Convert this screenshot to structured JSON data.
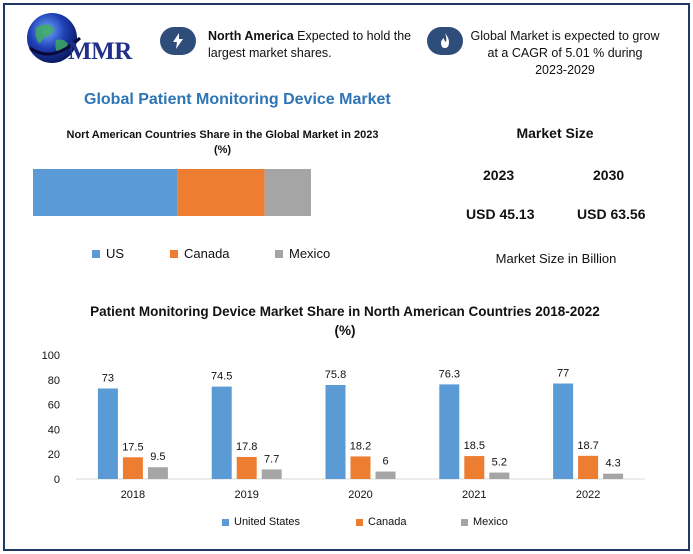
{
  "brand": {
    "logo_text": "MMR"
  },
  "colors": {
    "us": "#5b9bd5",
    "canada": "#ed7d31",
    "mexico": "#a5a5a5",
    "title_blue": "#2e75b6",
    "icon_bg": "#2f4d7a"
  },
  "info": {
    "left_icon": "lightning-bolt-icon",
    "left_bold": "North America",
    "left_text": " Expected to hold the largest market shares.",
    "right_icon": "flame-icon",
    "right_text": "Global Market is expected to grow at a CAGR of 5.01 % during 2023-2029"
  },
  "main_title": "Global Patient Monitoring Device Market",
  "share_chart": {
    "title": "Nort American Countries Share in the Global Market in 2023 (%)",
    "legend": [
      "US",
      "Canada",
      "Mexico"
    ]
  },
  "market_size": {
    "title": "Market Size",
    "year_a": "2023",
    "year_b": "2030",
    "value_a": "USD 45.13",
    "value_b": "USD 63.56",
    "note": "Market Size in Billion"
  },
  "chart_data": [
    {
      "type": "bar",
      "orientation": "horizontal-stacked",
      "title": "Nort American Countries Share in the Global Market in 2023 (%)",
      "categories": [
        "2023"
      ],
      "series": [
        {
          "name": "US",
          "values": [
            50
          ]
        },
        {
          "name": "Canada",
          "values": [
            30
          ]
        },
        {
          "name": "Mexico",
          "values": [
            16
          ]
        }
      ],
      "legend": "bottom"
    },
    {
      "type": "bar",
      "title": "Patient Monitoring Device Market Share in North American Countries 2018-2022 (%)",
      "categories": [
        "2018",
        "2019",
        "2020",
        "2021",
        "2022"
      ],
      "series": [
        {
          "name": "United States",
          "values": [
            73,
            74.5,
            75.8,
            76.3,
            77
          ]
        },
        {
          "name": "Canada",
          "values": [
            17.5,
            17.8,
            18.2,
            18.5,
            18.7
          ]
        },
        {
          "name": "Mexico",
          "values": [
            9.5,
            7.7,
            6,
            5.2,
            4.3
          ]
        }
      ],
      "ylim": [
        0,
        100
      ],
      "yticks": [
        "0",
        "20",
        "40",
        "60",
        "80",
        "100"
      ],
      "data_labels": [
        "73",
        "74.5",
        "75.8",
        "76.3",
        "77",
        "17.5",
        "17.8",
        "18.2",
        "18.5",
        "18.7",
        "9.5",
        "7.7",
        "6",
        "5.2",
        "4.3"
      ],
      "grid": false,
      "legend": "bottom"
    }
  ]
}
